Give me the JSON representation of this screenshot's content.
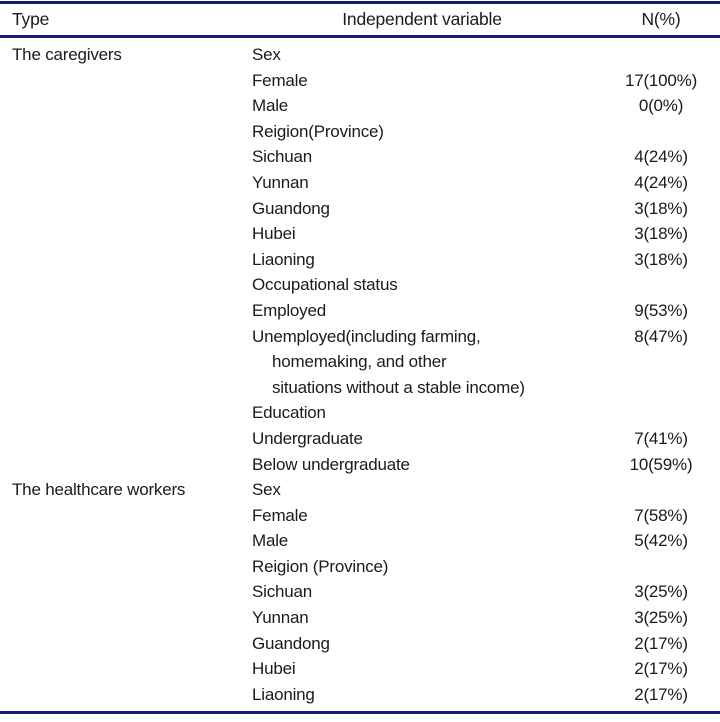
{
  "table": {
    "accent_color": "#1a1a6e",
    "columns": {
      "type": "Type",
      "variable": "Independent variable",
      "n": "N(%)"
    },
    "rows": [
      {
        "type": "The caregivers",
        "variable": "Sex",
        "n": "",
        "indent": false
      },
      {
        "type": "",
        "variable": "Female",
        "n": "17(100%)",
        "indent": false
      },
      {
        "type": "",
        "variable": "Male",
        "n": "0(0%)",
        "indent": false
      },
      {
        "type": "",
        "variable": "Reigion(Province)",
        "n": "",
        "indent": false
      },
      {
        "type": "",
        "variable": "Sichuan",
        "n": "4(24%)",
        "indent": false
      },
      {
        "type": "",
        "variable": "Yunnan",
        "n": "4(24%)",
        "indent": false
      },
      {
        "type": "",
        "variable": "Guandong",
        "n": "3(18%)",
        "indent": false
      },
      {
        "type": "",
        "variable": "Hubei",
        "n": "3(18%)",
        "indent": false
      },
      {
        "type": "",
        "variable": "Liaoning",
        "n": "3(18%)",
        "indent": false
      },
      {
        "type": "",
        "variable": "Occupational status",
        "n": "",
        "indent": false
      },
      {
        "type": "",
        "variable": "Employed",
        "n": "9(53%)",
        "indent": false
      },
      {
        "type": "",
        "variable": "Unemployed(including farming,",
        "n": "8(47%)",
        "indent": false
      },
      {
        "type": "",
        "variable": "homemaking, and other",
        "n": "",
        "indent": true
      },
      {
        "type": "",
        "variable": "situations without a stable income)",
        "n": "",
        "indent": true
      },
      {
        "type": "",
        "variable": "Education",
        "n": "",
        "indent": false
      },
      {
        "type": "",
        "variable": "Undergraduate",
        "n": "7(41%)",
        "indent": false
      },
      {
        "type": "",
        "variable": "Below undergraduate",
        "n": "10(59%)",
        "indent": false
      },
      {
        "type": "The healthcare workers",
        "variable": "Sex",
        "n": "",
        "indent": false
      },
      {
        "type": "",
        "variable": "Female",
        "n": "7(58%)",
        "indent": false
      },
      {
        "type": "",
        "variable": "Male",
        "n": "5(42%)",
        "indent": false
      },
      {
        "type": "",
        "variable": "Reigion (Province)",
        "n": "",
        "indent": false
      },
      {
        "type": "",
        "variable": "Sichuan",
        "n": "3(25%)",
        "indent": false
      },
      {
        "type": "",
        "variable": "Yunnan",
        "n": "3(25%)",
        "indent": false
      },
      {
        "type": "",
        "variable": "Guandong",
        "n": "2(17%)",
        "indent": false
      },
      {
        "type": "",
        "variable": "Hubei",
        "n": "2(17%)",
        "indent": false
      },
      {
        "type": "",
        "variable": "Liaoning",
        "n": "2(17%)",
        "indent": false
      }
    ]
  }
}
